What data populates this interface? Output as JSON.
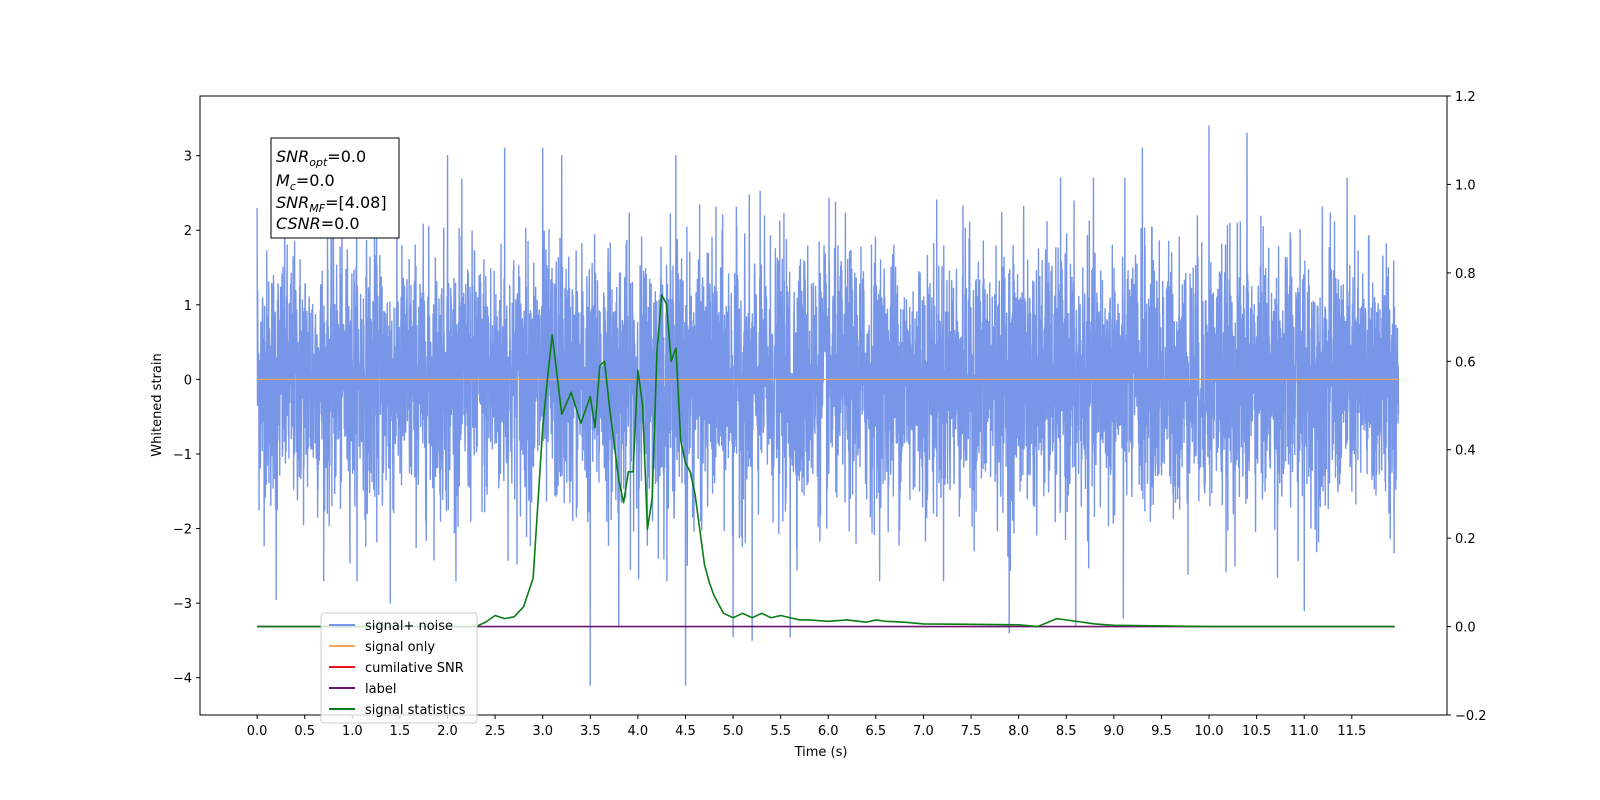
{
  "chart_data": {
    "type": "line",
    "xlabel": "Time (s)",
    "ylabel": "Whitened strain",
    "xlim": [
      -0.6,
      12.5
    ],
    "ylim": [
      -4.5,
      3.8
    ],
    "y2lim": [
      -0.2,
      1.2
    ],
    "x_ticks": [
      "0.0",
      "0.5",
      "1.0",
      "1.5",
      "2.0",
      "2.5",
      "3.0",
      "3.5",
      "4.0",
      "4.5",
      "5.0",
      "5.5",
      "6.0",
      "6.5",
      "7.0",
      "7.5",
      "8.0",
      "8.5",
      "9.0",
      "9.5",
      "10.0",
      "10.5",
      "11.0",
      "11.5"
    ],
    "y_ticks": [
      "3",
      "2",
      "1",
      "0",
      "−1",
      "−2",
      "−3",
      "−4"
    ],
    "y_tick_values": [
      3,
      2,
      1,
      0,
      -1,
      -2,
      -3,
      -4
    ],
    "y2_ticks": [
      "1.2",
      "1.0",
      "0.8",
      "0.6",
      "0.4",
      "0.2",
      "0.0",
      "−0.2"
    ],
    "y2_tick_values": [
      1.2,
      1.0,
      0.8,
      0.6,
      0.4,
      0.2,
      0.0,
      -0.2
    ],
    "legend_position": "lower-left",
    "info_box": {
      "snr_opt": {
        "sym": "SNR",
        "sub": "opt",
        "val": "=0.0"
      },
      "mc": {
        "sym": "M",
        "sub": "c",
        "val": "=0.0"
      },
      "snr_mf": {
        "sym": "SNR",
        "sub": "MF",
        "val": "=[4.08]"
      },
      "csnr": {
        "sym": "CSNR",
        "val": "=0.0"
      }
    },
    "series": [
      {
        "name": "signal+ noise",
        "color": "#7896e8",
        "axis": "left",
        "x_range": [
          0.0,
          11.99
        ],
        "sample_count": 6000,
        "envelope": [
          -2.0,
          2.0
        ],
        "extremes": [
          {
            "x": 0.0,
            "y": 2.3
          },
          {
            "x": 0.2,
            "y": 2.9
          },
          {
            "x": 2.0,
            "y": 3.0
          },
          {
            "x": 2.6,
            "y": 3.1
          },
          {
            "x": 3.0,
            "y": 3.1
          },
          {
            "x": 3.2,
            "y": 3.0
          },
          {
            "x": 3.8,
            "y": 2.95
          },
          {
            "x": 4.4,
            "y": 3.0
          },
          {
            "x": 8.6,
            "y": 3.05
          },
          {
            "x": 9.3,
            "y": 3.1
          },
          {
            "x": 10.0,
            "y": 3.4
          },
          {
            "x": 10.4,
            "y": 3.3
          },
          {
            "x": 0.2,
            "y": -2.95
          },
          {
            "x": 1.4,
            "y": -3.0
          },
          {
            "x": 3.5,
            "y": -4.1
          },
          {
            "x": 3.8,
            "y": -3.3
          },
          {
            "x": 4.5,
            "y": -4.1
          },
          {
            "x": 5.0,
            "y": -3.45
          },
          {
            "x": 5.2,
            "y": -3.5
          },
          {
            "x": 5.6,
            "y": -3.45
          },
          {
            "x": 7.9,
            "y": -3.4
          },
          {
            "x": 8.6,
            "y": -3.3
          },
          {
            "x": 9.1,
            "y": -3.2
          },
          {
            "x": 11.0,
            "y": -3.1
          }
        ]
      },
      {
        "name": "signal only",
        "color": "#f5a55a",
        "axis": "left",
        "x": [
          0.0,
          12.0
        ],
        "y": [
          0.0,
          0.0
        ]
      },
      {
        "name": "cumilative SNR",
        "color": "#e8141e",
        "axis": "left",
        "x": [],
        "y": []
      },
      {
        "name": "label",
        "color": "#6a126e",
        "axis": "right",
        "x": [
          0.0,
          11.95
        ],
        "y": [
          0.0,
          0.0
        ]
      },
      {
        "name": "signal statistics",
        "color": "#0a7d16",
        "axis": "right",
        "x": [
          0.0,
          2.3,
          2.4,
          2.5,
          2.6,
          2.7,
          2.8,
          2.9,
          3.0,
          3.05,
          3.1,
          3.2,
          3.3,
          3.4,
          3.5,
          3.55,
          3.6,
          3.65,
          3.7,
          3.8,
          3.85,
          3.9,
          3.95,
          4.0,
          4.05,
          4.1,
          4.15,
          4.2,
          4.25,
          4.3,
          4.35,
          4.4,
          4.45,
          4.5,
          4.55,
          4.6,
          4.7,
          4.75,
          4.8,
          4.85,
          4.9,
          5.0,
          5.1,
          5.2,
          5.3,
          5.4,
          5.5,
          5.6,
          5.7,
          5.8,
          6.0,
          6.2,
          6.4,
          6.5,
          6.6,
          6.8,
          7.0,
          7.5,
          8.0,
          8.2,
          8.4,
          8.6,
          8.8,
          9.0,
          10.0,
          11.95
        ],
        "y": [
          0.0,
          0.0,
          0.01,
          0.025,
          0.018,
          0.022,
          0.045,
          0.11,
          0.45,
          0.56,
          0.66,
          0.48,
          0.53,
          0.46,
          0.52,
          0.45,
          0.59,
          0.6,
          0.5,
          0.33,
          0.28,
          0.35,
          0.35,
          0.58,
          0.5,
          0.22,
          0.29,
          0.62,
          0.75,
          0.73,
          0.6,
          0.63,
          0.42,
          0.37,
          0.35,
          0.3,
          0.14,
          0.1,
          0.07,
          0.05,
          0.03,
          0.02,
          0.03,
          0.02,
          0.03,
          0.02,
          0.025,
          0.02,
          0.015,
          0.015,
          0.012,
          0.015,
          0.01,
          0.015,
          0.012,
          0.01,
          0.006,
          0.005,
          0.004,
          0.0,
          0.018,
          0.012,
          0.006,
          0.003,
          0.0,
          0.0
        ]
      }
    ]
  }
}
